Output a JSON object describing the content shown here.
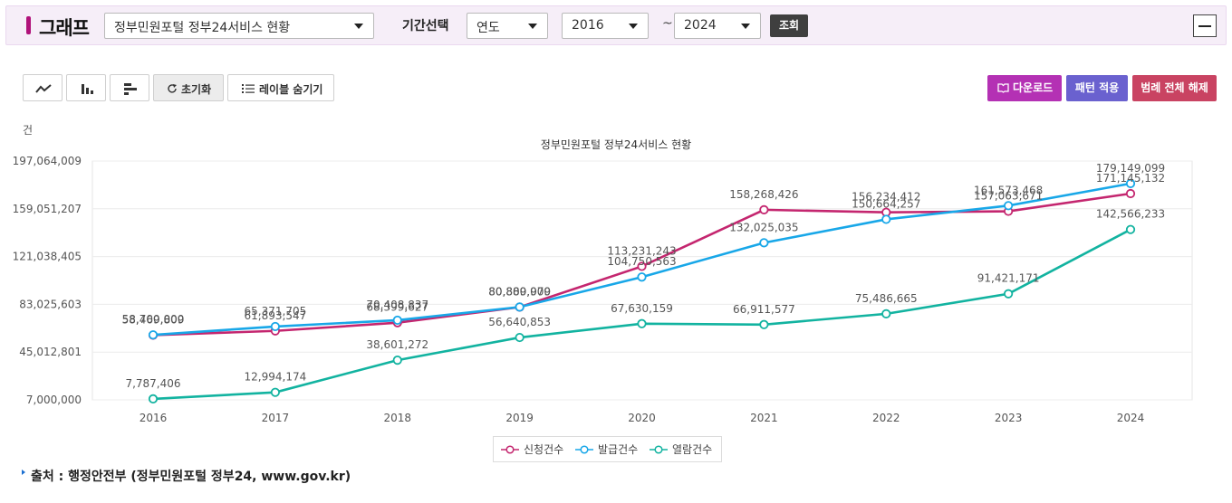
{
  "header": {
    "title": "그래프",
    "dataset_select": "정부민원포털 정부24서비스 현황",
    "period_label": "기간선택",
    "period_unit_select": "연도",
    "start_year_select": "2016",
    "range_separator": "~",
    "end_year_select": "2024",
    "search_button": "조회"
  },
  "toolbar": {
    "line_chart_icon": "line-chart-icon",
    "bar_chart_icon": "bar-chart-icon",
    "hbar_chart_icon": "horizontal-bar-chart-icon",
    "reset_label": "초기화",
    "hide_labels_label": "레이블 숨기기",
    "download_label": "다운로드",
    "pattern_label": "패턴 적용",
    "legend_toggle_label": "범례 전체 해제"
  },
  "colors": {
    "apply": "#c4266f",
    "issue": "#18a7e8",
    "view": "#12b3a0",
    "download_btn": "#b431b4",
    "pattern_btn": "#6a61cf",
    "legend_btn": "#c94362"
  },
  "chart_data": {
    "type": "line",
    "title": "정부민원포털 정부24서비스 현황",
    "ylabel": "건",
    "ylim": [
      7000000,
      197064009
    ],
    "yticks": [
      "7,000,000",
      "45,012,801",
      "83,025,603",
      "121,038,405",
      "159,051,207",
      "197,064,009"
    ],
    "categories": [
      "2016",
      "2017",
      "2018",
      "2019",
      "2020",
      "2021",
      "2022",
      "2023",
      "2024"
    ],
    "series": [
      {
        "name": "신청건수",
        "color": "#c4266f",
        "values": [
          58469809,
          61893547,
          68399627,
          80809979,
          113231243,
          158268426,
          156234412,
          157063671,
          171145132
        ],
        "labels": [
          "58,469,809",
          "61,893,547",
          "68,399,627",
          "80,809,979",
          "113,231,243",
          "158,268,426",
          "156,234,412",
          "157,063,671",
          "171,145,132"
        ]
      },
      {
        "name": "발급건수",
        "color": "#18a7e8",
        "values": [
          58700000,
          65371705,
          70408837,
          80880000,
          104750563,
          132025035,
          150664257,
          161573468,
          179149099
        ],
        "labels": [
          "58,700,000",
          "65,371,705",
          "70,408,837",
          "80,880,000",
          "104,750,563",
          "132,025,035",
          "150,664,257",
          "161,573,468",
          "179,149,099"
        ]
      },
      {
        "name": "열람건수",
        "color": "#12b3a0",
        "values": [
          7787406,
          12994174,
          38601272,
          56640853,
          67630159,
          66911577,
          75486665,
          91421171,
          142566233
        ],
        "labels": [
          "7,787,406",
          "12,994,174",
          "38,601,272",
          "56,640,853",
          "67,630,159",
          "66,911,577",
          "75,486,665",
          "91,421,171",
          "142,566,233"
        ]
      }
    ],
    "legend_position": "bottom",
    "grid": true
  },
  "source": "출처 : 행정안전부 (정부민원포털 정부24, www.gov.kr)"
}
